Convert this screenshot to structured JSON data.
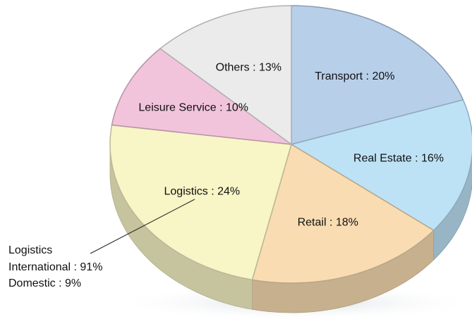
{
  "chart_data": {
    "type": "pie",
    "values": [
      20,
      16,
      18,
      24,
      10,
      13
    ],
    "value_labels": [
      "Transport : 20%",
      "Real Estate : 16%",
      "Retail : 18%",
      "Logistics : 24%",
      "Leisure Service : 10%",
      "Others : 13%"
    ],
    "colors": [
      "#b8cfea",
      "#bde2f6",
      "#f9dcb2",
      "#f8f5c6",
      "#f2c4dc",
      "#ebebeb"
    ],
    "annotation": [
      "Logistics",
      "International : 91%",
      "Domestic : 9%"
    ]
  }
}
